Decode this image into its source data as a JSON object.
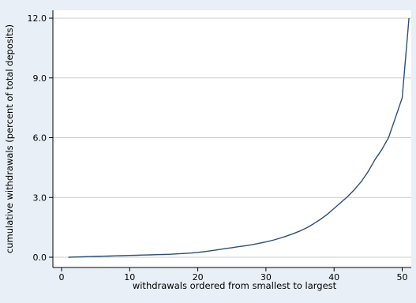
{
  "chart_data": {
    "type": "line",
    "title": "",
    "xlabel": "withdrawals ordered from smallest to largest",
    "ylabel": "cumulative withdrawals (percent of total deposits)",
    "xlim": [
      0,
      52
    ],
    "ylim": [
      0,
      12
    ],
    "xticks": [
      0,
      10,
      20,
      30,
      40,
      50
    ],
    "yticks": [
      0,
      3,
      6,
      9,
      12
    ],
    "xtick_labels": [
      "0",
      "10",
      "20",
      "30",
      "40",
      "50"
    ],
    "ytick_labels": [
      "0.0",
      "3.0",
      "6.0",
      "9.0",
      "12.0"
    ],
    "grid": "horizontal",
    "legend": "none",
    "colors": {
      "line": "#2c4f74",
      "plot_bg": "#ffffff",
      "page_bg": "#e8eff6",
      "grid": "#cccccc",
      "axis": "#000000"
    },
    "series": [
      {
        "x": [
          1,
          2,
          3,
          4,
          5,
          6,
          7,
          8,
          9,
          10,
          11,
          12,
          13,
          14,
          15,
          16,
          17,
          18,
          19,
          20,
          21,
          22,
          23,
          24,
          25,
          26,
          27,
          28,
          29,
          30,
          31,
          32,
          33,
          34,
          35,
          36,
          37,
          38,
          39,
          40,
          41,
          42,
          43,
          44,
          45,
          46,
          47,
          48,
          49,
          50,
          51
        ],
        "values": [
          0.0,
          0.01,
          0.02,
          0.03,
          0.04,
          0.05,
          0.06,
          0.07,
          0.08,
          0.09,
          0.1,
          0.11,
          0.12,
          0.13,
          0.14,
          0.15,
          0.17,
          0.19,
          0.21,
          0.24,
          0.28,
          0.33,
          0.38,
          0.43,
          0.48,
          0.53,
          0.58,
          0.63,
          0.7,
          0.77,
          0.85,
          0.95,
          1.06,
          1.18,
          1.32,
          1.48,
          1.68,
          1.9,
          2.15,
          2.45,
          2.75,
          3.05,
          3.4,
          3.8,
          4.3,
          4.9,
          5.4,
          6.0,
          7.0,
          8.0,
          12.0
        ]
      }
    ]
  }
}
